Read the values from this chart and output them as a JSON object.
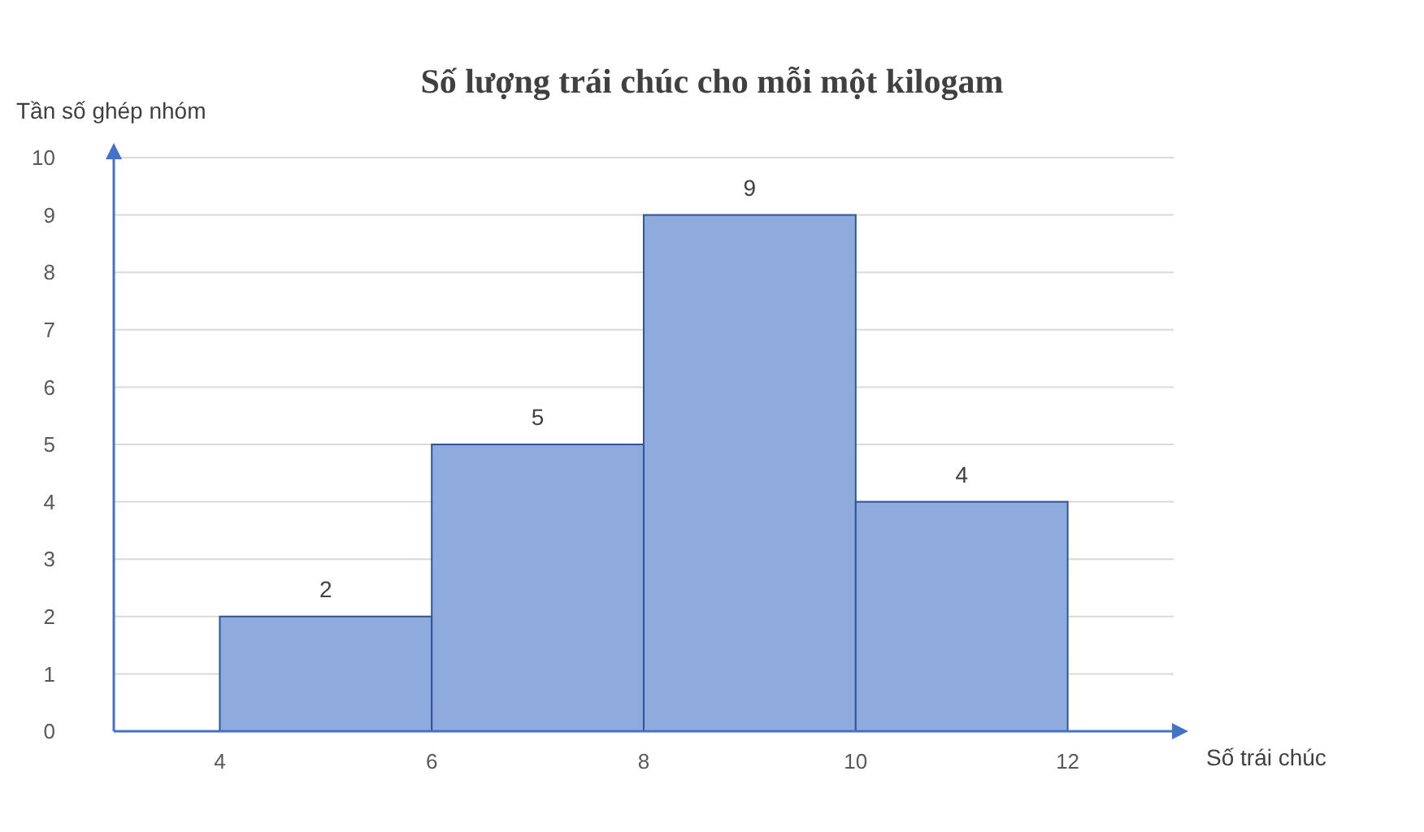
{
  "chart_data": {
    "type": "histogram",
    "title": "Số lượng trái chúc cho mỗi một kilogam",
    "xlabel": "Số trái chúc",
    "ylabel": "Tần số ghép nhóm",
    "bins": [
      4,
      6,
      8,
      10,
      12
    ],
    "values": [
      2,
      5,
      9,
      4
    ],
    "color": "#8faadc",
    "xlim": [
      3,
      13
    ],
    "xticks": [
      4,
      6,
      8,
      10,
      12
    ],
    "ylim": [
      0,
      10
    ],
    "yticks": [
      0,
      1,
      2,
      3,
      4,
      5,
      6,
      7,
      8,
      9,
      10
    ],
    "grid": "y",
    "data_labels": true
  }
}
